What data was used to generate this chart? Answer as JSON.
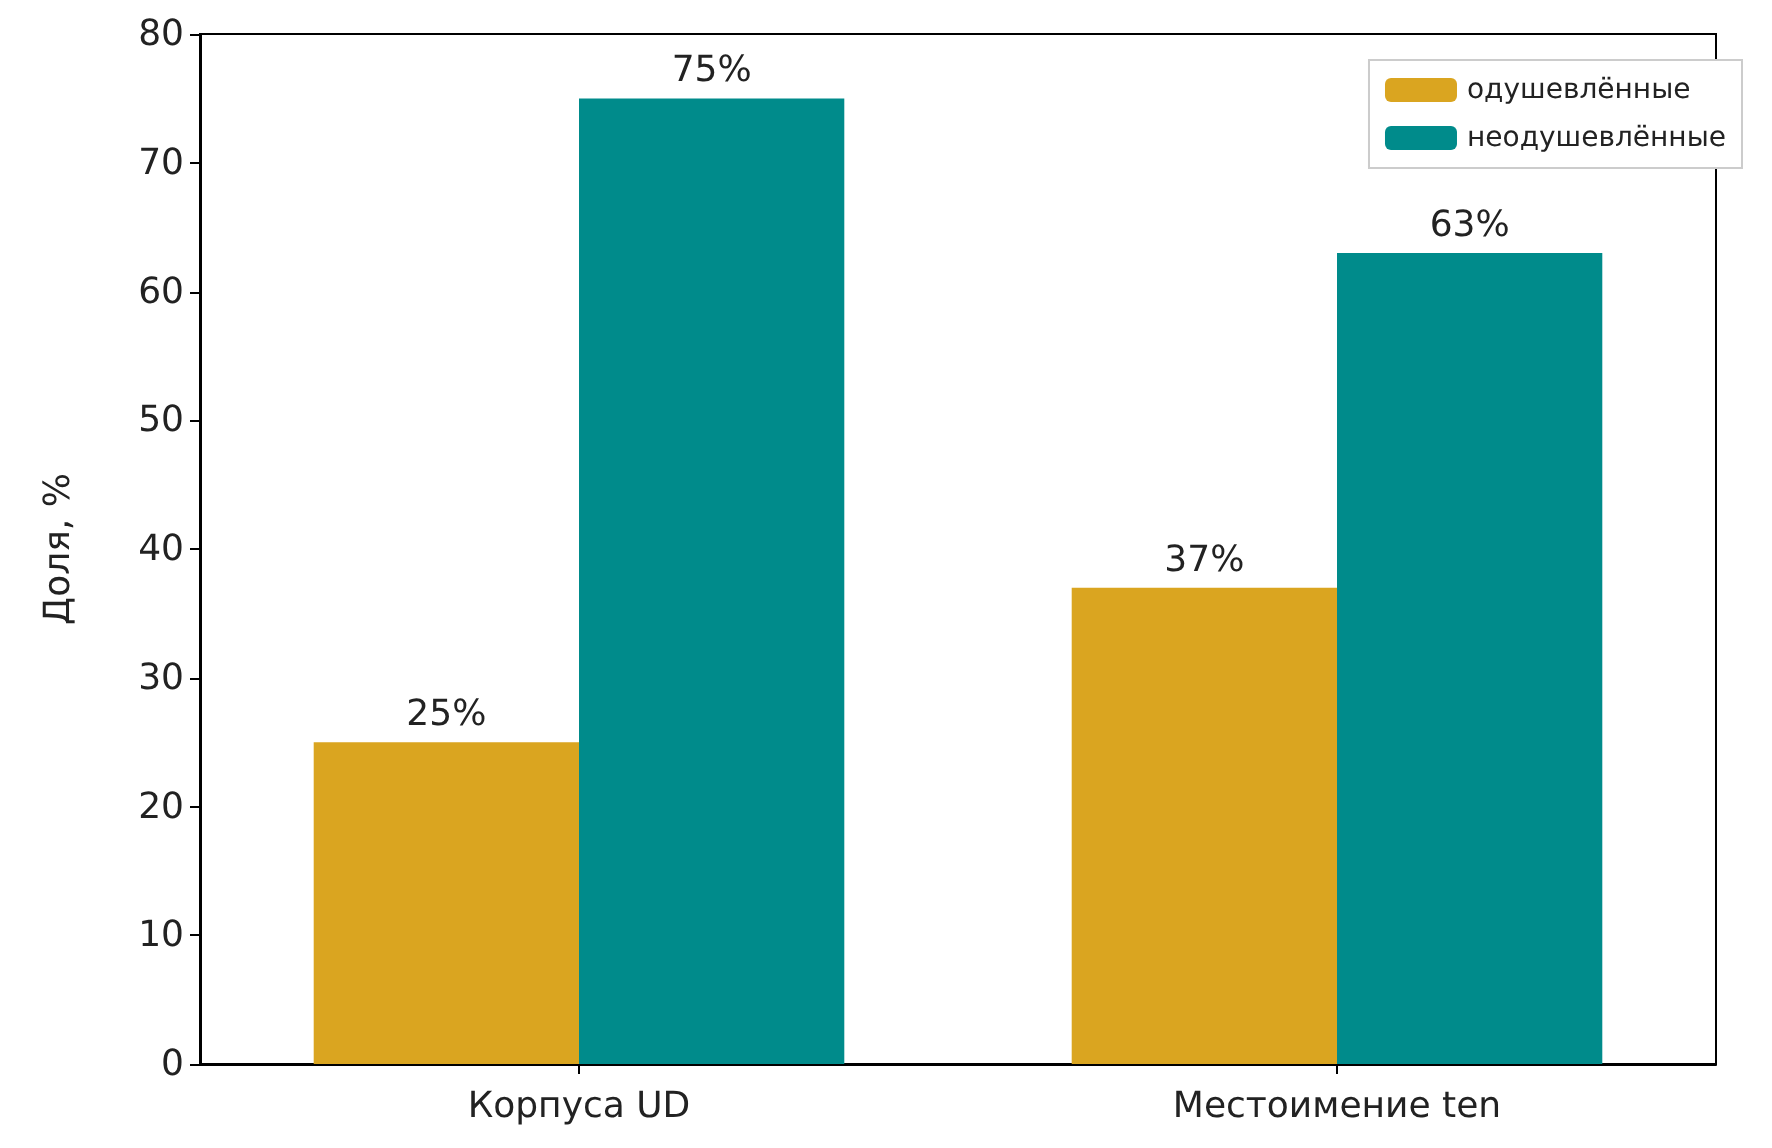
{
  "chart_data": {
    "type": "bar",
    "ylabel": "Доля, %",
    "categories": [
      "Корпуса UD",
      "Местоимение ten"
    ],
    "series": [
      {
        "name": "одушевлённые",
        "color": "#daa520",
        "values": [
          25,
          37
        ],
        "value_labels": [
          "25%",
          "37%"
        ]
      },
      {
        "name": "неодушевлённые",
        "color": "#008b8b",
        "values": [
          75,
          63
        ],
        "value_labels": [
          "75%",
          "63%"
        ]
      }
    ],
    "ylim": [
      0,
      80
    ],
    "yticks": [
      0,
      10,
      20,
      30,
      40,
      50,
      60,
      70,
      80
    ],
    "grid": false,
    "legend": "top right"
  }
}
